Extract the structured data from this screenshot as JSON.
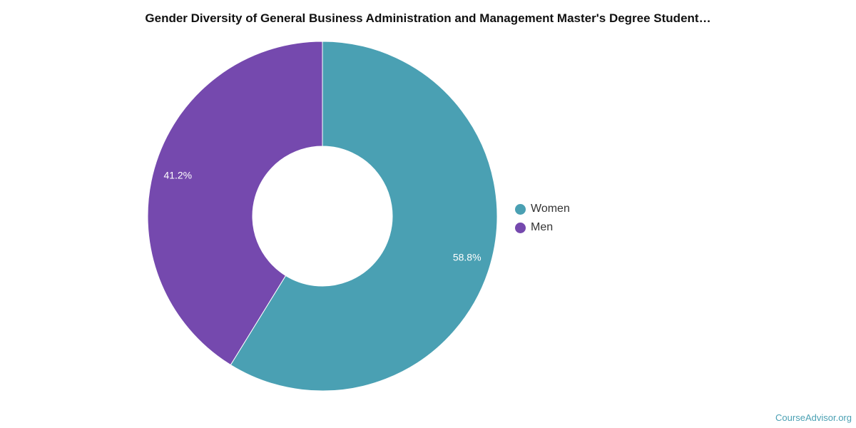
{
  "chart_data": {
    "type": "pie",
    "title": "Gender Diversity of General Business Administration and Management Master's Degree Student…",
    "categories": [
      "Women",
      "Men"
    ],
    "values": [
      58.8,
      41.2
    ],
    "value_labels": [
      "58.8%",
      "41.2%"
    ],
    "colors": [
      "#4aa0b3",
      "#7549ae"
    ],
    "donut": true,
    "legend_position": "right"
  },
  "source_label": "CourseAdvisor.org"
}
